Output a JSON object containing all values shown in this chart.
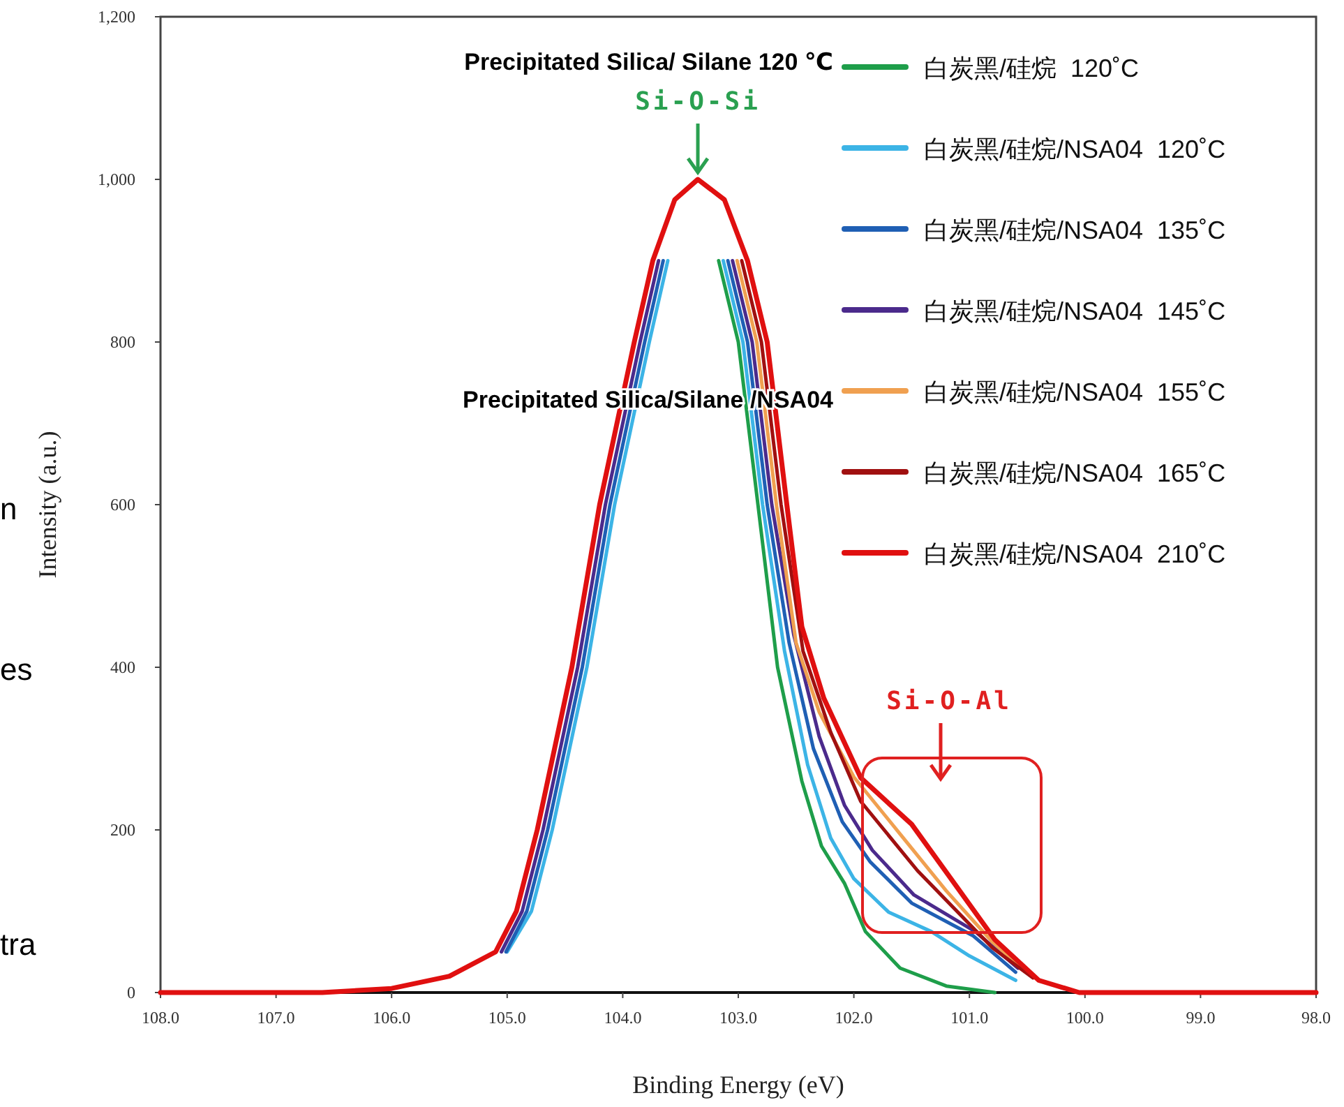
{
  "chart_data": {
    "type": "line",
    "xlabel": "Binding Energy (eV)",
    "ylabel": "Intensity (a.u.)",
    "xlim": [
      108,
      98
    ],
    "ylim": [
      0,
      1200
    ],
    "xticks": [
      {
        "value": 108,
        "label": "108.0"
      },
      {
        "value": 107,
        "label": "107.0"
      },
      {
        "value": 106,
        "label": "106.0"
      },
      {
        "value": 105,
        "label": "105.0"
      },
      {
        "value": 104,
        "label": "104.0"
      },
      {
        "value": 103,
        "label": "103.0"
      },
      {
        "value": 102,
        "label": "102.0"
      },
      {
        "value": 101,
        "label": "101.0"
      },
      {
        "value": 100,
        "label": "100.0"
      },
      {
        "value": 99,
        "label": "99.0"
      },
      {
        "value": 98,
        "label": "98.0"
      }
    ],
    "yticks": [
      0,
      200,
      400,
      600,
      800,
      {
        "value": 1000,
        "label": "1,000"
      },
      {
        "value": 1200,
        "label": "1,200"
      }
    ],
    "grid": false,
    "legend": "top right",
    "line_style": "solid",
    "marker": "none",
    "series": [
      {
        "name": "白炭黑/硅烷  120˚C",
        "color": "#1e9e4a",
        "x": [
          103.17,
          103.0,
          102.83,
          102.66,
          102.45,
          102.28,
          102.08,
          101.9,
          101.6,
          101.2,
          100.78
        ],
        "values": [
          900,
          800,
          600,
          400,
          260,
          180,
          134,
          75,
          30,
          8,
          0
        ]
      },
      {
        "name": "白炭黑/硅烷/NSA04  120˚C",
        "color": "#3cb4e6",
        "x": [
          105.0,
          104.79,
          104.61,
          104.31,
          104.07,
          103.77,
          103.61,
          null,
          103.13,
          102.96,
          102.79,
          102.6,
          102.4,
          102.2,
          102.0,
          101.7,
          101.33,
          101.0,
          100.6
        ],
        "values": [
          50,
          100,
          200,
          400,
          600,
          800,
          900,
          null,
          900,
          800,
          600,
          420,
          280,
          190,
          140,
          99,
          75,
          45,
          15
        ]
      },
      {
        "name": "白炭黑/硅烷/NSA04  135˚C",
        "color": "#1f5fb4",
        "x": [
          105.01,
          104.83,
          104.65,
          104.35,
          104.11,
          103.81,
          103.65,
          null,
          103.09,
          102.92,
          102.75,
          102.56,
          102.35,
          102.1,
          101.86,
          101.5,
          100.97,
          100.6
        ],
        "values": [
          50,
          100,
          200,
          400,
          600,
          800,
          900,
          null,
          900,
          800,
          600,
          430,
          300,
          210,
          161,
          110,
          70,
          25
        ]
      },
      {
        "name": "白炭黑/硅烷/NSA04  145˚C",
        "color": "#4b2a8c",
        "x": [
          105.05,
          104.87,
          104.69,
          104.39,
          104.15,
          103.85,
          103.69,
          null,
          103.05,
          102.88,
          102.71,
          102.52,
          102.3,
          102.08,
          101.84,
          101.48,
          100.95,
          100.58
        ],
        "values": [
          50,
          100,
          200,
          400,
          600,
          800,
          900,
          null,
          900,
          800,
          600,
          440,
          315,
          230,
          175,
          120,
          75,
          30
        ]
      },
      {
        "name": "白炭黑/硅烷/NSA04  155˚C",
        "color": "#f0a050",
        "x": [
          103.01,
          102.84,
          102.67,
          102.5,
          102.3,
          102.0,
          101.6,
          101.2,
          100.8,
          100.5
        ],
        "values": [
          900,
          800,
          600,
          430,
          345,
          265,
          195,
          125,
          62,
          25
        ]
      },
      {
        "name": "白炭黑/硅烷/NSA04  165˚C",
        "color": "#a01010",
        "x": [
          102.97,
          102.8,
          102.63,
          102.44,
          102.2,
          101.94,
          101.45,
          100.8,
          100.45
        ],
        "values": [
          900,
          800,
          600,
          420,
          320,
          235,
          150,
          55,
          18
        ]
      },
      {
        "name": "白炭黑/硅烷/NSA04  210˚C",
        "color": "#e01010",
        "x": [
          108,
          106.6,
          106.0,
          105.5,
          105.1,
          104.92,
          104.74,
          104.44,
          104.2,
          103.9,
          103.74,
          103.55,
          103.35,
          103.12,
          102.92,
          102.75,
          102.58,
          102.45,
          102.26,
          101.94,
          101.5,
          101.18,
          100.78,
          100.4,
          100.05,
          98
        ],
        "values": [
          0,
          0,
          5,
          20,
          50,
          100,
          200,
          400,
          600,
          800,
          900,
          975,
          1000,
          975,
          900,
          800,
          600,
          450,
          362,
          264,
          207,
          144,
          65,
          15,
          0,
          0
        ]
      }
    ],
    "annotations": [
      "Precipitated Silica/ Silane 120 ℃",
      {
        "text": "Si-O-Si",
        "x": 103.35,
        "y": 1000
      },
      "Precipitated Silica/Silane /NSA04",
      "Si-O-Al",
      "n",
      "es",
      "tra"
    ]
  }
}
